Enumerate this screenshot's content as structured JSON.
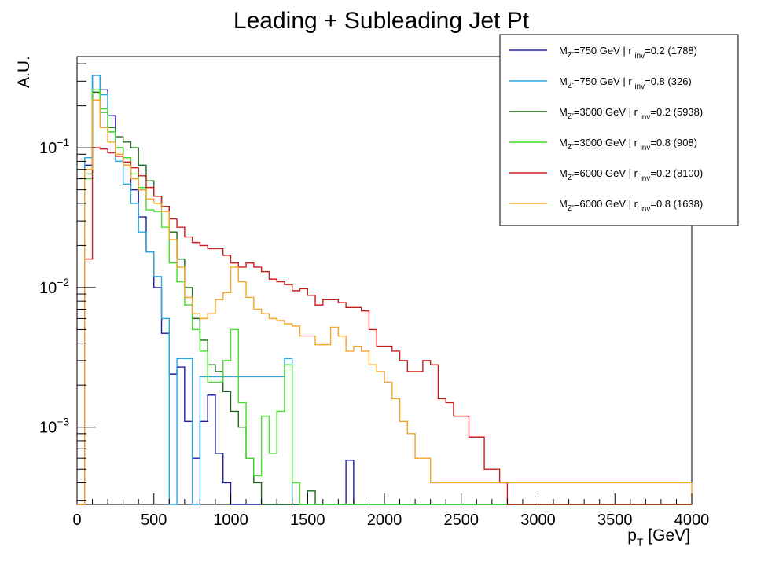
{
  "chart_data": {
    "type": "line",
    "step": true,
    "title": "Leading + Subleading Jet Pt",
    "xlabel": {
      "main": "p",
      "sub": "T",
      "unit": " [GeV]"
    },
    "ylabel": "A.U.",
    "xlim": [
      0,
      4000
    ],
    "ylim": [
      0.00028,
      0.45
    ],
    "ylog": true,
    "bin_width": 50,
    "x_ticks": [
      0,
      500,
      1000,
      1500,
      2000,
      2500,
      3000,
      3500,
      4000
    ],
    "x_tick_labels": [
      "0",
      "500",
      "1000",
      "1500",
      "2000",
      "2500",
      "3000",
      "3500",
      "4000"
    ],
    "y_ticks": [
      {
        "value": 0.1,
        "base": "10",
        "exp": "−1"
      },
      {
        "value": 0.01,
        "base": "10",
        "exp": "−2"
      },
      {
        "value": 0.001,
        "base": "10",
        "exp": "−3"
      }
    ],
    "legend_position": "top-right",
    "series": [
      {
        "name": "M_Z'=750 GeV | r_inv=0.2 (1788)",
        "label": {
          "pre": "M",
          "sub1": "Z'",
          "mid": "=750 GeV | r ",
          "sub2": "inv",
          "post": "=0.2 (1788)"
        },
        "color": "#1a1fa8",
        "values": [
          0,
          0.075,
          0.33,
          0.26,
          0.17,
          0.1,
          0.075,
          0.05,
          0.032,
          0.018,
          0.01,
          0.0047,
          0.0024,
          0.0027,
          0.0011,
          0.0006,
          0.0011,
          0.0017,
          0.00065,
          0.0004,
          0.00022,
          0.0,
          0.0,
          0.0,
          0.0,
          0.0,
          0.0,
          0.0,
          0.0,
          0.0,
          0.0,
          0.0,
          0.0,
          0.0,
          0.0,
          0.00058,
          0.0,
          0.0,
          0.0,
          0.0,
          0.0,
          0.0,
          0.0,
          0.0,
          0.0,
          0.0,
          0.0,
          0.0,
          0.0,
          0.0,
          0.0,
          0.0,
          0.0,
          0.0,
          0.0,
          0.0,
          0.0,
          0.0,
          0.0,
          0.0,
          0.0,
          0.0,
          0.0,
          0.0,
          0.0,
          0.0,
          0.0,
          0.0,
          0.0,
          0.0,
          0.0,
          0.0,
          0.0,
          0.0,
          0.0,
          0.0,
          0.0,
          0.0,
          0.0,
          0.0
        ]
      },
      {
        "name": "M_Z'=750 GeV | r_inv=0.8 (326)",
        "label": {
          "pre": "M",
          "sub1": "Z'",
          "mid": "=750 GeV | r ",
          "sub2": "inv",
          "post": "=0.8 (326)"
        },
        "color": "#29a8e0",
        "values": [
          0,
          0.085,
          0.33,
          0.24,
          0.13,
          0.08,
          0.055,
          0.04,
          0.025,
          0.018,
          0.012,
          0.006,
          0.0,
          0.0031,
          0.0031,
          0.0,
          0.0023,
          0.0023,
          0.0023,
          0.0023,
          0.0023,
          0.0023,
          0.0023,
          0.0023,
          0.0023,
          0.0023,
          0.0023,
          0.0031,
          0.0,
          0.0,
          0.0,
          0.0,
          0.0,
          0.0,
          0.0,
          0.0,
          0.0,
          0.0,
          0.0,
          0.0,
          0.0,
          0.0,
          0.0,
          0.0,
          0.0,
          0.0,
          0.0,
          0.0,
          0.0,
          0.0,
          0.0,
          0.0,
          0.0,
          0.0,
          0.0,
          0.0,
          0.0,
          0.0,
          0.0,
          0.0,
          0.0,
          0.0,
          0.0,
          0.0,
          0.0,
          0.0,
          0.0,
          0.0,
          0.0,
          0.0,
          0.0,
          0.0,
          0.0,
          0.0,
          0.0,
          0.0,
          0.0,
          0.0,
          0.0,
          0.0
        ]
      },
      {
        "name": "M_Z'=3000 GeV | r_inv=0.2 (5938)",
        "label": {
          "pre": "M",
          "sub1": "Z'",
          "mid": "=3000 GeV | r ",
          "sub2": "inv",
          "post": "=0.2 (5938)"
        },
        "color": "#1b6b1e",
        "values": [
          0,
          0.065,
          0.25,
          0.18,
          0.14,
          0.12,
          0.11,
          0.1,
          0.075,
          0.058,
          0.045,
          0.038,
          0.025,
          0.016,
          0.01,
          0.006,
          0.0042,
          0.0028,
          0.0025,
          0.0018,
          0.0013,
          0.001,
          0.0006,
          0.0004,
          0.0,
          0.0,
          0.0,
          0.0,
          0.0,
          0.0,
          0.00035,
          0.0,
          0.0,
          0.0,
          0.0,
          0.0,
          0.0,
          0.0,
          0.0,
          0.0,
          0.0,
          0.0,
          0.0,
          0.0,
          0.0,
          0.0,
          0.0,
          0.0,
          0.0,
          0.0,
          0.0,
          0.0,
          0.0,
          0.0,
          0.0,
          0.0,
          0.0,
          0.0,
          0.0,
          0.0,
          0.0,
          0.0,
          0.0,
          0.0,
          0.0,
          0.0,
          0.0,
          0.0,
          0.0,
          0.0,
          0.0,
          0.0,
          0.0,
          0.0,
          0.0,
          0.0,
          0.0,
          0.0,
          0.0,
          0.0
        ]
      },
      {
        "name": "M_Z'=3000 GeV | r_inv=0.8 (908)",
        "label": {
          "pre": "M",
          "sub1": "Z'",
          "mid": "=3000 GeV | r ",
          "sub2": "inv",
          "post": "=0.8 (908)"
        },
        "color": "#44e028",
        "values": [
          0,
          0.06,
          0.26,
          0.19,
          0.13,
          0.1,
          0.085,
          0.065,
          0.052,
          0.036,
          0.035,
          0.027,
          0.015,
          0.011,
          0.0075,
          0.005,
          0.0035,
          0.0021,
          0.0021,
          0.003,
          0.005,
          0.0015,
          0.0006,
          0.00045,
          0.0012,
          0.00065,
          0.0013,
          0.0028,
          0.0004,
          0.0,
          0.0,
          0.0,
          0.0,
          0.0,
          0.0,
          0.0,
          0.0,
          0.0,
          0.0,
          0.0,
          0.0,
          0.0,
          0.0,
          0.0,
          0.0,
          0.0,
          0.0,
          0.0,
          0.0,
          0.0,
          0.0,
          0.0,
          0.0,
          0.0,
          0.0,
          0.0,
          0.0,
          0.0,
          0.0,
          0.0,
          0.0,
          0.0,
          0.0,
          0.0,
          0.0,
          0.0,
          0.0,
          0.0,
          0.0,
          0.0,
          0.0,
          0.0,
          0.0,
          0.0,
          0.0,
          0.0,
          0.0,
          0.0,
          0.0,
          0.0
        ]
      },
      {
        "name": "M_Z'=6000 GeV | r_inv=0.2 (8100)",
        "label": {
          "pre": "M",
          "sub1": "Z'",
          "mid": "=6000 GeV | r ",
          "sub2": "inv",
          "post": "=0.2 (8100)"
        },
        "color": "#cc1c1c",
        "values": [
          0.0,
          0.016,
          0.1,
          0.098,
          0.092,
          0.087,
          0.079,
          0.072,
          0.063,
          0.052,
          0.045,
          0.038,
          0.031,
          0.027,
          0.023,
          0.021,
          0.02,
          0.019,
          0.019,
          0.017,
          0.015,
          0.014,
          0.015,
          0.014,
          0.013,
          0.0115,
          0.011,
          0.0105,
          0.0095,
          0.0098,
          0.0088,
          0.0075,
          0.0082,
          0.0082,
          0.0078,
          0.0072,
          0.0072,
          0.0068,
          0.005,
          0.0038,
          0.0038,
          0.0035,
          0.003,
          0.0025,
          0.0025,
          0.003,
          0.0028,
          0.0016,
          0.0015,
          0.0012,
          0.0012,
          0.00085,
          0.00085,
          0.0005,
          0.0005,
          0.0004,
          0.0002,
          0.0002,
          0.0002,
          0.0002,
          0.0002,
          0.0002,
          0.0002,
          0.0002,
          0.0002,
          0.0002,
          0.0002,
          0.0002,
          0.0002,
          0.0002,
          0.0002,
          0.0002,
          0.0002,
          0.0002,
          0.0002,
          0.0002,
          0.0002,
          0.0002,
          0.0002,
          0.0002
        ]
      },
      {
        "name": "M_Z'=6000 GeV | r_inv=0.8 (1638)",
        "label": {
          "pre": "M",
          "sub1": "Z'",
          "mid": "=6000 GeV | r ",
          "sub2": "inv",
          "post": "=0.8 (1638)"
        },
        "color": "#f5a523",
        "values": [
          0,
          0.07,
          0.22,
          0.14,
          0.11,
          0.09,
          0.075,
          0.06,
          0.05,
          0.043,
          0.04,
          0.035,
          0.022,
          0.014,
          0.0085,
          0.0065,
          0.006,
          0.0065,
          0.0082,
          0.0092,
          0.014,
          0.011,
          0.0085,
          0.007,
          0.0065,
          0.006,
          0.0058,
          0.0055,
          0.0053,
          0.0045,
          0.0045,
          0.0039,
          0.0039,
          0.0052,
          0.0045,
          0.0035,
          0.0038,
          0.0035,
          0.0028,
          0.0025,
          0.0021,
          0.0016,
          0.0011,
          0.0009,
          0.0006,
          0.0006,
          0.0004,
          0.0004,
          0.0004,
          0.0004,
          0.0004,
          0.0004,
          0.0004,
          0.0004,
          0.0004,
          0.0004,
          0.0004,
          0.0004,
          0.0004,
          0.0004,
          0.0004,
          0.0004,
          0.0004,
          0.0004,
          0.0004,
          0.0004,
          0.0004,
          0.0004,
          0.0004,
          0.0004,
          0.0004,
          0.0004,
          0.0004,
          0.0004,
          0.0004,
          0.0004,
          0.0004,
          0.0004,
          0.0004,
          0.0004
        ]
      }
    ]
  }
}
